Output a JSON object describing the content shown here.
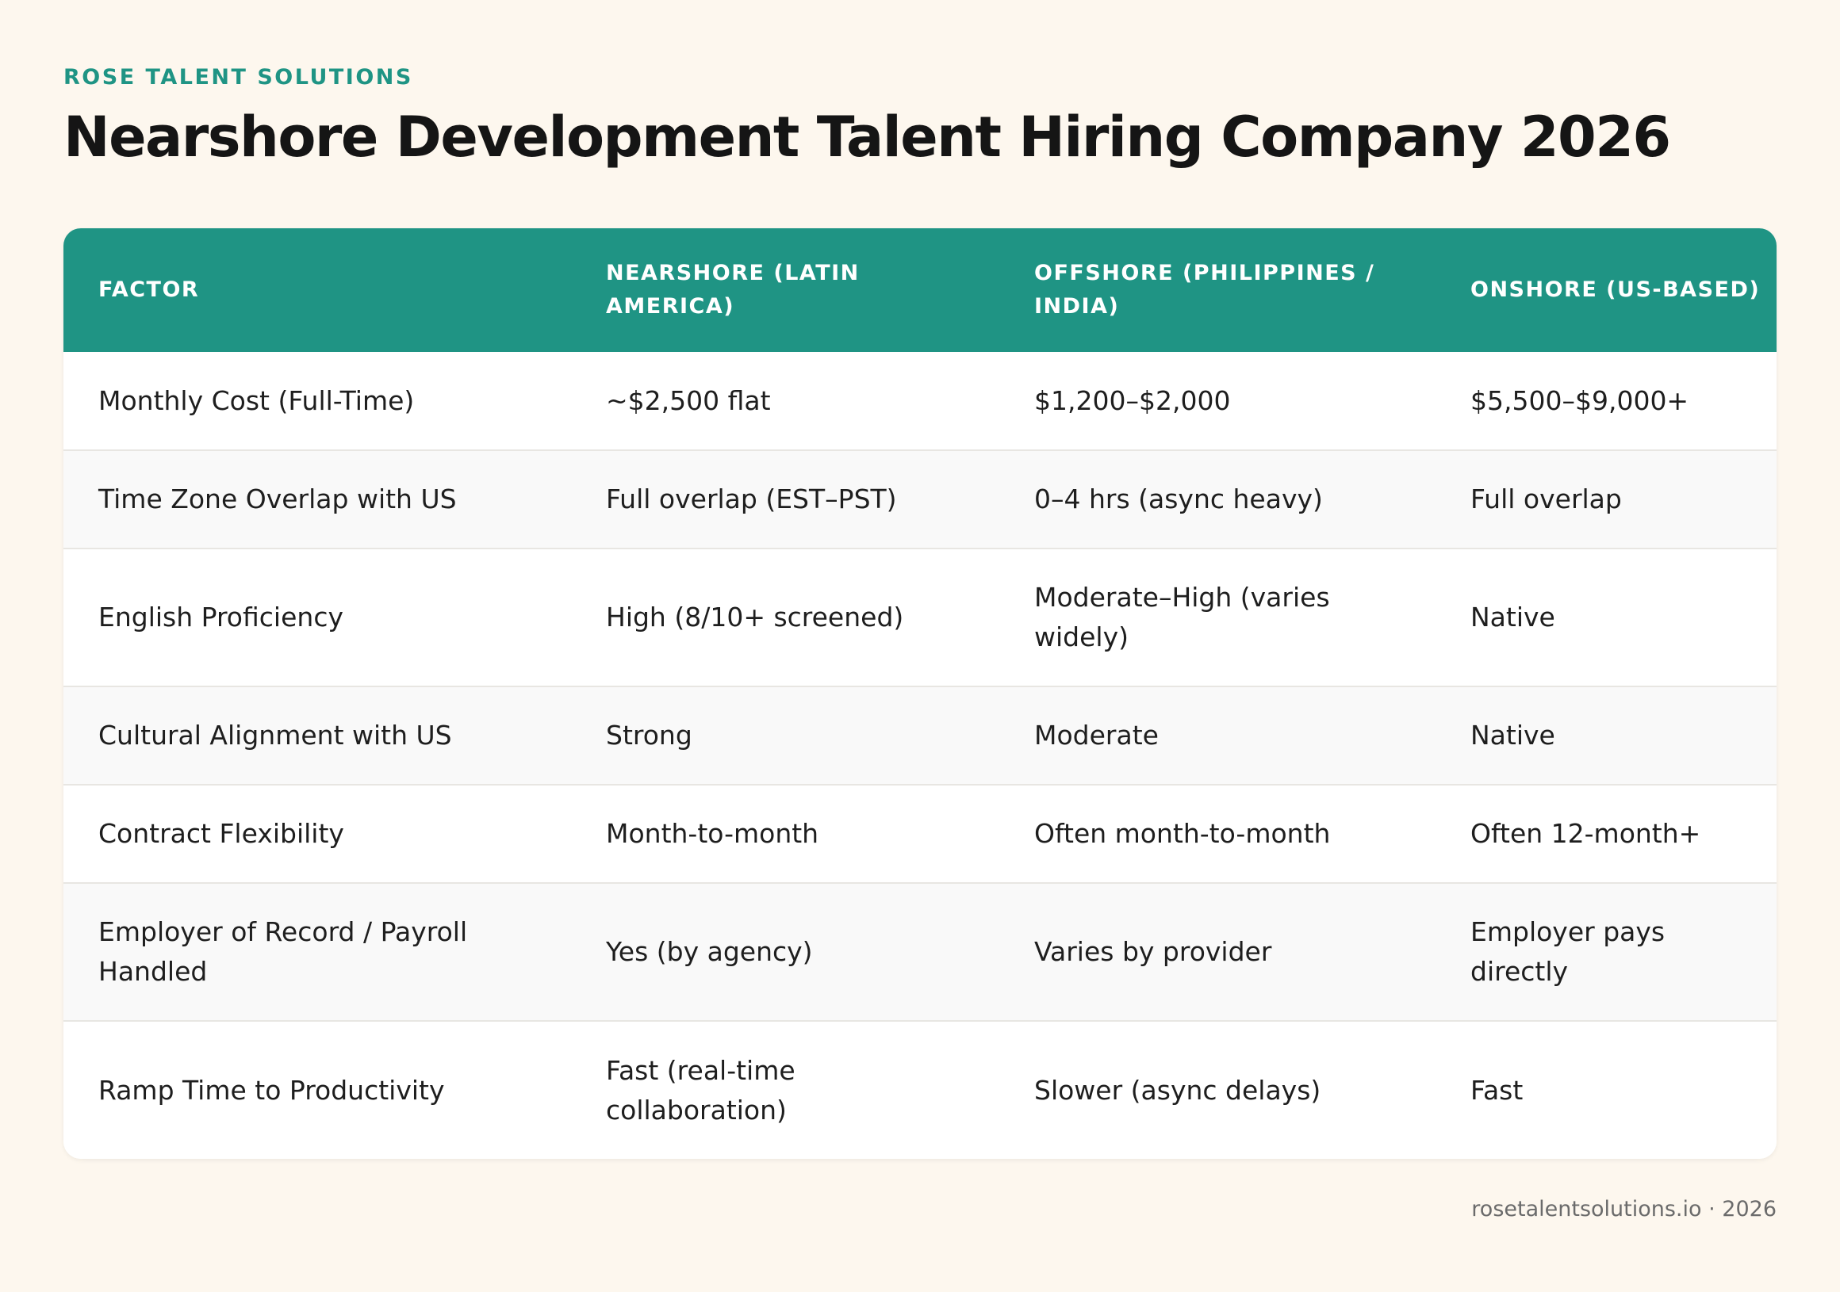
{
  "header": {
    "brand": "ROSE TALENT SOLUTIONS",
    "title": "Nearshore Development Talent Hiring Company 2026"
  },
  "table": {
    "columns": [
      "FACTOR",
      "NEARSHORE (LATIN AMERICA)",
      "OFFSHORE (PHILIPPINES / INDIA)",
      "ONSHORE (US-BASED)"
    ],
    "rows": [
      [
        "Monthly Cost (Full-Time)",
        "~$2,500 flat",
        "$1,200–$2,000",
        "$5,500–$9,000+"
      ],
      [
        "Time Zone Overlap with US",
        "Full overlap (EST–PST)",
        "0–4 hrs (async heavy)",
        "Full overlap"
      ],
      [
        "English Proficiency",
        "High (8/10+ screened)",
        "Moderate–High (varies widely)",
        "Native"
      ],
      [
        "Cultural Alignment with US",
        "Strong",
        "Moderate",
        "Native"
      ],
      [
        "Contract Flexibility",
        "Month-to-month",
        "Often month-to-month",
        "Often 12-month+"
      ],
      [
        "Employer of Record / Payroll Handled",
        "Yes (by agency)",
        "Varies by provider",
        "Employer pays directly"
      ],
      [
        "Ramp Time to Productivity",
        "Fast (real-time collaboration)",
        "Slower (async delays)",
        "Fast"
      ]
    ]
  },
  "footer": {
    "text": "rosetalentsolutions.io · 2026"
  },
  "colors": {
    "accent": "#1f9484",
    "background": "#fdf7ee",
    "row_alt": "#f9f9f9"
  }
}
